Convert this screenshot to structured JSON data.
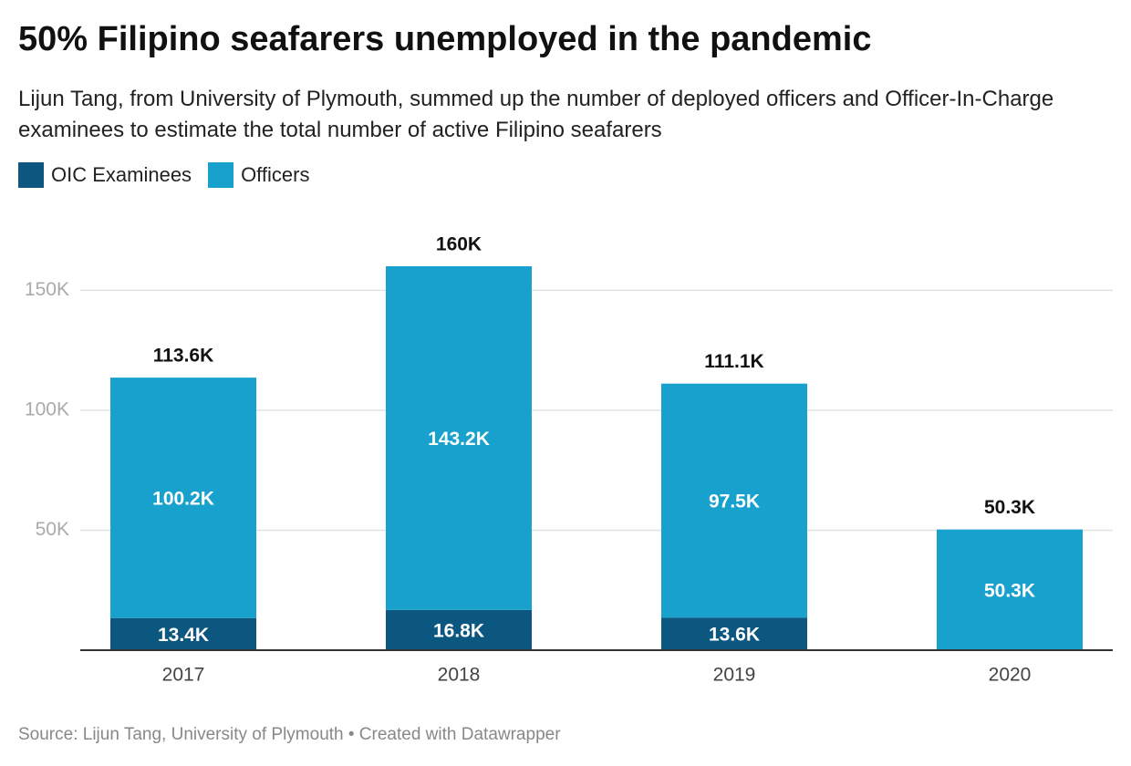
{
  "chart_data": {
    "type": "stacked-bar",
    "title": "50% Filipino seafarers unemployed in the pandemic",
    "subtitle": "Lijun Tang, from University of Plymouth, summed up the number of deployed officers and Officer-In-Charge examinees to estimate the total number of active Filipino seafarers",
    "categories": [
      "2017",
      "2018",
      "2019",
      "2020"
    ],
    "series": [
      {
        "name": "OIC Examinees",
        "color": "#0b5780",
        "values": [
          13400,
          16800,
          13600,
          null
        ],
        "value_labels": [
          "13.4K",
          "16.8K",
          "13.6K",
          null
        ]
      },
      {
        "name": "Officers",
        "color": "#18a1cd",
        "values": [
          100200,
          143200,
          97500,
          50300
        ],
        "value_labels": [
          "100.2K",
          "143.2K",
          "97.5K",
          "50.3K"
        ]
      }
    ],
    "totals": [
      113600,
      160000,
      111100,
      50300
    ],
    "total_labels": [
      "113.6K",
      "160K",
      "111.1K",
      "50.3K"
    ],
    "ylim": [
      0,
      160000
    ],
    "yticks": [
      {
        "value": 50000,
        "label": "50K"
      },
      {
        "value": 100000,
        "label": "100K"
      },
      {
        "value": 150000,
        "label": "150K"
      }
    ],
    "grid": true,
    "source": "Source: Lijun Tang, University of Plymouth • Created with Datawrapper"
  }
}
